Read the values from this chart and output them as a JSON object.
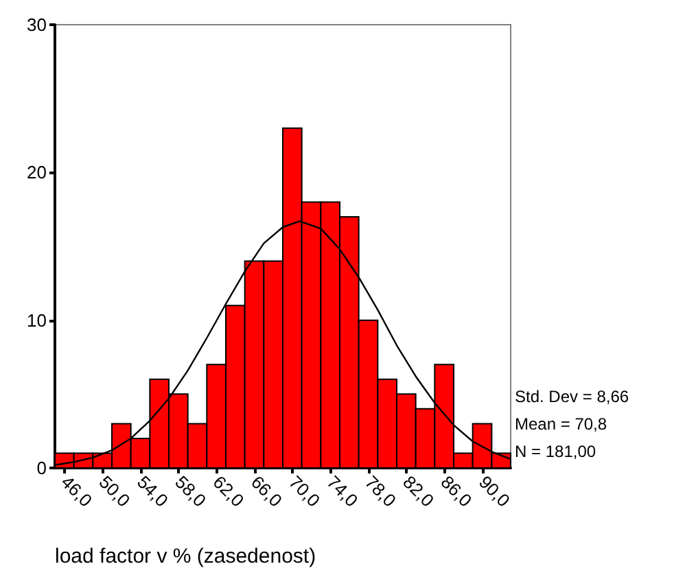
{
  "chart_data": {
    "type": "histogram",
    "xlabel": "load factor v % (zasedenost)",
    "bins": [
      45,
      47,
      49,
      51,
      53,
      55,
      57,
      59,
      61,
      63,
      65,
      67,
      69,
      71,
      73,
      75,
      77,
      79,
      81,
      83,
      85,
      87,
      89,
      91,
      93
    ],
    "series": [
      {
        "color": "#ff0000",
        "values": [
          1,
          1,
          1,
          3,
          2,
          6,
          5,
          3,
          7,
          11,
          14,
          14,
          23,
          18,
          18,
          17,
          10,
          6,
          5,
          4,
          7,
          1,
          3,
          1
        ]
      },
      {
        "type": "line",
        "color": "#000000",
        "x": [
          45,
          47,
          49,
          51,
          53,
          55,
          57,
          59,
          61,
          63,
          65,
          67,
          69,
          70.8,
          73,
          75,
          77,
          79,
          81,
          83,
          85,
          87,
          89,
          91,
          93
        ],
        "values": [
          0.2,
          0.4,
          0.7,
          1.2,
          2.0,
          3.2,
          4.7,
          6.6,
          8.8,
          11.1,
          13.3,
          15.2,
          16.3,
          16.7,
          16.2,
          14.8,
          12.9,
          10.7,
          8.3,
          6.2,
          4.4,
          2.9,
          1.8,
          1.1,
          0.6
        ]
      }
    ],
    "xlim": [
      45,
      93
    ],
    "xticks": [
      {
        "value": 46,
        "label": "46,0"
      },
      {
        "value": 50,
        "label": "50,0"
      },
      {
        "value": 54,
        "label": "54,0"
      },
      {
        "value": 58,
        "label": "58,0"
      },
      {
        "value": 62,
        "label": "62,0"
      },
      {
        "value": 66,
        "label": "66,0"
      },
      {
        "value": 70,
        "label": "70,0"
      },
      {
        "value": 74,
        "label": "74,0"
      },
      {
        "value": 78,
        "label": "78,0"
      },
      {
        "value": 82,
        "label": "82,0"
      },
      {
        "value": 86,
        "label": "86,0"
      },
      {
        "value": 90,
        "label": "90,0"
      }
    ],
    "ylim": [
      0,
      30
    ],
    "yticks": [
      0,
      10,
      20,
      30
    ],
    "annotations": [
      "Std. Dev = 8,66",
      "Mean = 70,8",
      "N = 181,00"
    ]
  }
}
